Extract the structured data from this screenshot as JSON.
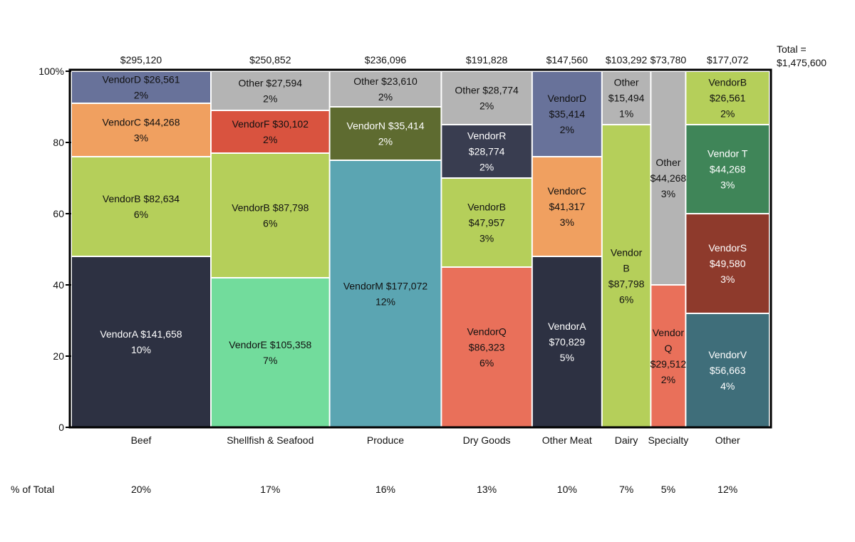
{
  "chart_data": {
    "type": "mekko",
    "y_axis": {
      "min": 0,
      "max": 100,
      "ticks": [
        "0",
        "20",
        "40",
        "60",
        "80",
        "100%"
      ]
    },
    "grand_total_label": "Total =",
    "grand_total_value": "$1,475,600",
    "pct_row_label": "% of Total",
    "categories": [
      {
        "name": "Beef",
        "total": "$295,120",
        "pct": "20%",
        "share": 20,
        "segments": [
          {
            "label": [
              "VendorA $141,658",
              "10%"
            ],
            "percent": 48,
            "color": "#2d3142",
            "text_color": "#ffffff"
          },
          {
            "label": [
              "VendorB $82,634",
              "6%"
            ],
            "percent": 28,
            "color": "#b5cf5a",
            "text_color": "#111111"
          },
          {
            "label": [
              "VendorC $44,268",
              "3%"
            ],
            "percent": 15,
            "color": "#f0a060",
            "text_color": "#111111"
          },
          {
            "label": [
              "VendorD $26,561",
              "2%"
            ],
            "percent": 9,
            "color": "#68729a",
            "text_color": "#111111"
          }
        ]
      },
      {
        "name": "Shellfish & Seafood",
        "total": "$250,852",
        "pct": "17%",
        "share": 17,
        "segments": [
          {
            "label": [
              "VendorE $105,358",
              "7%"
            ],
            "percent": 42,
            "color": "#72dc9c",
            "text_color": "#111111"
          },
          {
            "label": [
              "VendorB $87,798",
              "6%"
            ],
            "percent": 35,
            "color": "#b5cf5a",
            "text_color": "#111111"
          },
          {
            "label": [
              "VendorF $30,102",
              "2%"
            ],
            "percent": 12,
            "color": "#d9533f",
            "text_color": "#111111"
          },
          {
            "label": [
              "Other $27,594",
              "2%"
            ],
            "percent": 11,
            "color": "#b4b4b4",
            "text_color": "#111111"
          }
        ]
      },
      {
        "name": "Produce",
        "total": "$236,096",
        "pct": "16%",
        "share": 16,
        "segments": [
          {
            "label": [
              "VendorM $177,072",
              "12%"
            ],
            "percent": 75,
            "color": "#5ba5b2",
            "text_color": "#111111"
          },
          {
            "label": [
              "VendorN $35,414",
              "2%"
            ],
            "percent": 15,
            "color": "#5e6b30",
            "text_color": "#ffffff"
          },
          {
            "label": [
              "Other $23,610",
              "2%"
            ],
            "percent": 10,
            "color": "#b4b4b4",
            "text_color": "#111111"
          }
        ]
      },
      {
        "name": "Dry Goods",
        "total": "$191,828",
        "pct": "13%",
        "share": 13,
        "segments": [
          {
            "label": [
              "VendorQ",
              "$86,323",
              "6%"
            ],
            "percent": 45,
            "color": "#e9705a",
            "text_color": "#111111"
          },
          {
            "label": [
              "VendorB",
              "$47,957",
              "3%"
            ],
            "percent": 25,
            "color": "#b5cf5a",
            "text_color": "#111111"
          },
          {
            "label": [
              "VendorR",
              "$28,774",
              "2%"
            ],
            "percent": 15,
            "color": "#393d50",
            "text_color": "#ffffff"
          },
          {
            "label": [
              "Other $28,774",
              "2%"
            ],
            "percent": 15,
            "color": "#b4b4b4",
            "text_color": "#111111"
          }
        ]
      },
      {
        "name": "Other Meat",
        "total": "$147,560",
        "pct": "10%",
        "share": 10,
        "segments": [
          {
            "label": [
              "VendorA",
              "$70,829",
              "5%"
            ],
            "percent": 48,
            "color": "#2d3142",
            "text_color": "#ffffff"
          },
          {
            "label": [
              "VendorC",
              "$41,317",
              "3%"
            ],
            "percent": 28,
            "color": "#f0a060",
            "text_color": "#111111"
          },
          {
            "label": [
              "VendorD",
              "$35,414",
              "2%"
            ],
            "percent": 24,
            "color": "#68729a",
            "text_color": "#111111"
          }
        ]
      },
      {
        "name": "Dairy",
        "total": "$103,292",
        "pct": "7%",
        "share": 7,
        "segments": [
          {
            "label": [
              "Vendor",
              "B",
              "$87,798",
              "6%"
            ],
            "percent": 85,
            "color": "#b5cf5a",
            "text_color": "#111111"
          },
          {
            "label": [
              "Other",
              "$15,494",
              "1%"
            ],
            "percent": 15,
            "color": "#b4b4b4",
            "text_color": "#111111"
          }
        ]
      },
      {
        "name": "Specialty",
        "total": "$73,780",
        "pct": "5%",
        "share": 5,
        "segments": [
          {
            "label": [
              "Vendor",
              "Q",
              "$29,512",
              "2%"
            ],
            "percent": 40,
            "color": "#e9705a",
            "text_color": "#111111"
          },
          {
            "label": [
              "Other",
              "$44,268",
              "3%"
            ],
            "percent": 60,
            "color": "#b4b4b4",
            "text_color": "#111111"
          }
        ]
      },
      {
        "name": "Other",
        "total": "$177,072",
        "pct": "12%",
        "share": 12,
        "segments": [
          {
            "label": [
              "VendorV",
              "$56,663",
              "4%"
            ],
            "percent": 32,
            "color": "#3f6e7a",
            "text_color": "#ffffff"
          },
          {
            "label": [
              "VendorS",
              "$49,580",
              "3%"
            ],
            "percent": 28,
            "color": "#8e3a2c",
            "text_color": "#ffffff"
          },
          {
            "label": [
              "Vendor T",
              "$44,268",
              "3%"
            ],
            "percent": 25,
            "color": "#3f8558",
            "text_color": "#ffffff"
          },
          {
            "label": [
              "VendorB",
              "$26,561",
              "2%"
            ],
            "percent": 15,
            "color": "#b5cf5a",
            "text_color": "#111111"
          }
        ]
      }
    ]
  }
}
